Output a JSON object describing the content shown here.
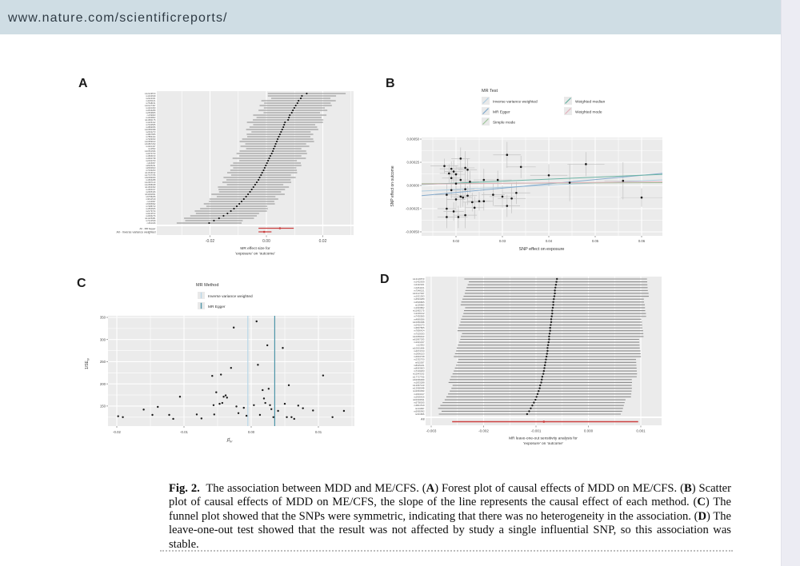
{
  "header": {
    "url": "www.nature.com/scientificreports/"
  },
  "figure": {
    "letters": {
      "a": "A",
      "b": "B",
      "c": "C",
      "d": "D"
    },
    "note": "SNP row labels in panels A and D are illegible at source resolution; rs IDs below are visual approximations."
  },
  "caption": {
    "segments": [
      {
        "t": "Fig. 2.",
        "b": true
      },
      {
        "t": "  The association between MDD and ME/CFS. (",
        "b": false
      },
      {
        "t": "A",
        "b": true
      },
      {
        "t": ") Forest plot of causal effects of MDD on ME/CFS. (",
        "b": false
      },
      {
        "t": "B",
        "b": true
      },
      {
        "t": ") Scatter plot of causal effects of MDD on ME/CFS, the slope of the line represents the causal effect of each method. (",
        "b": false
      },
      {
        "t": "C",
        "b": true
      },
      {
        "t": ") The funnel plot showed that the SNPs were symmetric, indicating that there was no heterogeneity in the association. (",
        "b": false
      },
      {
        "t": "D",
        "b": true
      },
      {
        "t": ") The leave-one-out test showed that the result was not affected by study a single influential SNP, so this association was stable.",
        "b": false
      }
    ]
  },
  "colors": {
    "panel_bg": "#ebebeb",
    "grid": "#ffffff",
    "bar_gray": "#8c8c8c",
    "point_black": "#1a1a1a",
    "summary_red": "#cc4040",
    "axis_text": "#4d4d4d",
    "header_bg": "#cfdde4"
  },
  "chart_data": [
    {
      "id": "A",
      "type": "forest",
      "xlabel_lines": [
        "MR effect size for",
        "'exposure' on 'outcome'"
      ],
      "x_ticks": [
        -0.02,
        0.0,
        0.02
      ],
      "x_tick_labels": [
        "-0.02",
        "0.00",
        "0.02"
      ],
      "xlim": [
        -0.039,
        0.031
      ],
      "snp_labels": [
        "rs12129573",
        "rs1432639",
        "rs2422321",
        "rs4261101",
        "rs7548151",
        "rs10127497",
        "rs1021363",
        "rs4543289",
        "rs2509805",
        "rs159963",
        "rs1933802",
        "rs11682175",
        "rs1226412",
        "rs7430565",
        "rs4869056",
        "rs10950398",
        "rs2402273",
        "rs3807865",
        "rs7856424",
        "rs7029033",
        "rs10959913",
        "rs61867293",
        "rs1021437",
        "rs12552",
        "rs10501696",
        "rs4074723",
        "rs1806153",
        "rs4904738",
        "rs2332700",
        "rs915057",
        "rs8025231",
        "rs8063603",
        "rs7193263",
        "rs11643192",
        "rs17727765",
        "rs62099069",
        "rs1833288",
        "rs12967143",
        "rs12958048",
        "rs11663393",
        "rs1904317",
        "rs2905426",
        "rs61902811",
        "rs5758265",
        "rs9611519",
        "rs134997",
        "rs5995992",
        "rs7288723",
        "rs1554505",
        "rs2179744",
        "rs3213572",
        "rs4936276",
        "rs11225381",
        "rs7122539",
        "rs661046"
      ],
      "estimates": [
        0.0143,
        0.0126,
        0.0122,
        0.0114,
        0.011,
        0.0104,
        0.0099,
        0.0094,
        0.009,
        0.0083,
        0.008,
        0.0077,
        0.0066,
        0.0063,
        0.006,
        0.0056,
        0.0052,
        0.0048,
        0.0044,
        0.004,
        0.0037,
        0.0033,
        0.003,
        0.0026,
        0.0023,
        0.0019,
        0.0014,
        0.001,
        0.0006,
        0.0002,
        -0.0002,
        -0.0006,
        -0.001,
        -0.0015,
        -0.0019,
        -0.0024,
        -0.0028,
        -0.0034,
        -0.004,
        -0.0046,
        -0.0052,
        -0.0058,
        -0.0065,
        -0.0072,
        -0.008,
        -0.0088,
        -0.0096,
        -0.0105,
        -0.0115,
        -0.0126,
        -0.0138,
        -0.0152,
        -0.0168,
        -0.0186,
        -0.0203
      ],
      "ci_half_widths": [
        0.0138,
        0.0121,
        0.0105,
        0.0132,
        0.0118,
        0.0128,
        0.0108,
        0.0122,
        0.01,
        0.013,
        0.0115,
        0.0125,
        0.0135,
        0.011,
        0.012,
        0.0128,
        0.0105,
        0.0118,
        0.0112,
        0.0126,
        0.0132,
        0.0108,
        0.0122,
        0.0098,
        0.0118,
        0.0125,
        0.011,
        0.013,
        0.0102,
        0.012,
        0.0126,
        0.0112,
        0.0118,
        0.0124,
        0.0106,
        0.0128,
        0.0114,
        0.0122,
        0.01,
        0.0126,
        0.0118,
        0.011,
        0.013,
        0.0104,
        0.0122,
        0.0116,
        0.0126,
        0.0108,
        0.012,
        0.0128,
        0.0112,
        0.0118,
        0.0124,
        0.0102,
        0.0115
      ],
      "summary_rows": [
        {
          "label": "All - MR Egger",
          "est": 0.0048,
          "lo": -0.0028,
          "hi": 0.0097
        },
        {
          "label": "All - Inverse variance weighted",
          "est": -0.0008,
          "lo": -0.0028,
          "hi": 0.0018
        }
      ]
    },
    {
      "id": "B",
      "type": "scatter",
      "legend_title": "MR Test",
      "legend": [
        {
          "label": "Inverse variance weighted",
          "color": "#aeccdf"
        },
        {
          "label": "MR Egger",
          "color": "#7fa8cb"
        },
        {
          "label": "Simple mode",
          "color": "#9dc49a"
        },
        {
          "label": "Weighted median",
          "color": "#66b1a1"
        },
        {
          "label": "Weighted mode",
          "color": "#e4b0ba"
        }
      ],
      "xlabel": "SNP effect on exposure",
      "ylabel": "SNP effect on outcome",
      "x_ticks": [
        0.02,
        0.03,
        0.04,
        0.05,
        0.06
      ],
      "x_tick_labels": [
        "0.02",
        "0.03",
        "0.04",
        "0.05",
        "0.06"
      ],
      "y_ticks": [
        0.0005,
        0.00025,
        0.0,
        -0.00025,
        -0.0005
      ],
      "y_tick_labels": [
        "0.00050",
        "0.00025",
        "0.00000",
        "-0.00025",
        "-0.00050"
      ],
      "xlim": [
        0.0126,
        0.0645
      ],
      "ylim": [
        -0.00055,
        0.00055
      ],
      "points": [
        [
          0.0175,
          0.00021,
          0.003,
          8e-05
        ],
        [
          0.018,
          -0.0001,
          0.0025,
          0.00012
        ],
        [
          0.018,
          -0.00025,
          0.002,
          0.0001
        ],
        [
          0.018,
          -0.00034,
          0.002,
          0.00012
        ],
        [
          0.0185,
          0.00013,
          0.002,
          0.0001
        ],
        [
          0.019,
          0.00018,
          0.0025,
          8e-05
        ],
        [
          0.019,
          8e-05,
          0.002,
          0.0001
        ],
        [
          0.019,
          -5e-05,
          0.002,
          9e-05
        ],
        [
          0.0195,
          0.00015,
          0.002,
          0.00012
        ],
        [
          0.0195,
          -0.00028,
          0.0022,
          0.0001
        ],
        [
          0.02,
          0.00012,
          0.002,
          0.0001
        ],
        [
          0.02,
          2e-05,
          0.0025,
          0.00012
        ],
        [
          0.02,
          -0.00015,
          0.002,
          0.00015
        ],
        [
          0.0205,
          -0.00034,
          0.002,
          0.00012
        ],
        [
          0.021,
          0.00029,
          0.002,
          0.00012
        ],
        [
          0.021,
          6e-05,
          0.002,
          0.0001
        ],
        [
          0.021,
          -0.00012,
          0.0022,
          0.00012
        ],
        [
          0.0215,
          -0.00013,
          0.002,
          0.0001
        ],
        [
          0.022,
          0.00019,
          0.002,
          0.00018
        ],
        [
          0.022,
          -4e-05,
          0.002,
          0.0001
        ],
        [
          0.022,
          -0.00032,
          0.0025,
          0.00014
        ],
        [
          0.0225,
          0.00017,
          0.002,
          0.00012
        ],
        [
          0.0225,
          -0.00011,
          0.002,
          0.0001
        ],
        [
          0.023,
          4e-05,
          0.002,
          0.00012
        ],
        [
          0.0235,
          -0.00018,
          0.002,
          0.0001
        ],
        [
          0.024,
          -0.00024,
          0.002,
          0.00012
        ],
        [
          0.025,
          -0.00017,
          0.0025,
          0.0001
        ],
        [
          0.026,
          6e-05,
          0.0022,
          0.00012
        ],
        [
          0.026,
          -0.00017,
          0.002,
          0.0001
        ],
        [
          0.028,
          -0.0001,
          0.0025,
          0.00012
        ],
        [
          0.029,
          6e-05,
          0.003,
          0.0001
        ],
        [
          0.03,
          -0.00012,
          0.0028,
          0.00012
        ],
        [
          0.031,
          0.00033,
          0.003,
          0.00014
        ],
        [
          0.031,
          -0.00022,
          0.0028,
          0.00012
        ],
        [
          0.032,
          -0.00014,
          0.003,
          0.00016
        ],
        [
          0.033,
          -8e-05,
          0.003,
          0.00012
        ],
        [
          0.034,
          0.0002,
          0.0032,
          0.00012
        ],
        [
          0.04,
          0.00011,
          0.004,
          0.00012
        ],
        [
          0.0445,
          3e-05,
          0.0045,
          0.0002
        ],
        [
          0.048,
          0.00023,
          0.004,
          0.00013
        ],
        [
          0.056,
          5e-05,
          0.004,
          0.0002
        ],
        [
          0.06,
          -0.00013,
          0.0045,
          0.0001
        ]
      ],
      "lines": [
        {
          "name": "Inverse variance weighted",
          "color": "#aeccdf",
          "y_at": [
            -6e-05,
            6e-05
          ]
        },
        {
          "name": "MR Egger",
          "color": "#7fa8cb",
          "y_at": [
            -0.00011,
            0.00013
          ]
        },
        {
          "name": "Simple mode",
          "color": "#9dc49a",
          "y_at": [
            2e-05,
            3e-05
          ]
        },
        {
          "name": "Weighted median",
          "color": "#66b1a1",
          "y_at": [
            1e-05,
            0.00012
          ]
        },
        {
          "name": "Weighted mode",
          "color": "#e4b0ba",
          "y_at": [
            1.5e-05,
            4e-05
          ]
        }
      ]
    },
    {
      "id": "C",
      "type": "funnel",
      "legend_title": "MR Method",
      "legend": [
        {
          "label": "Inverse variance weighted",
          "color": "#b9d7e8"
        },
        {
          "label": "MR Egger",
          "color": "#4e95a8"
        }
      ],
      "xlabel_main": "β̂",
      "xlabel_sub": "IV",
      "ylabel_main": "1/SE",
      "ylabel_sub": "IV",
      "x_ticks": [
        -0.02,
        -0.01,
        0.0,
        0.01
      ],
      "x_tick_labels": [
        "-0.02",
        "-0.01",
        "0.00",
        "0.01"
      ],
      "y_ticks": [
        350,
        300,
        250,
        200,
        150
      ],
      "y_tick_labels": [
        "350",
        "300",
        "250",
        "200",
        "150"
      ],
      "xlim": [
        -0.0225,
        0.0155
      ],
      "ylim": [
        105,
        355
      ],
      "vlines": [
        {
          "method": "Inverse variance weighted",
          "x": -0.0005,
          "color": "#b9d7e8"
        },
        {
          "method": "MR Egger",
          "x": 0.0035,
          "color": "#4e95a8"
        }
      ],
      "points": [
        [
          -0.0198,
          127
        ],
        [
          -0.0191,
          125
        ],
        [
          -0.016,
          142
        ],
        [
          -0.0147,
          130
        ],
        [
          -0.0139,
          148
        ],
        [
          -0.0122,
          130
        ],
        [
          -0.0116,
          121
        ],
        [
          -0.0106,
          171
        ],
        [
          -0.0081,
          131
        ],
        [
          -0.0074,
          122
        ],
        [
          -0.0058,
          218
        ],
        [
          -0.0056,
          152
        ],
        [
          -0.0055,
          131
        ],
        [
          -0.0052,
          181
        ],
        [
          -0.0047,
          155
        ],
        [
          -0.0045,
          221
        ],
        [
          -0.0043,
          157
        ],
        [
          -0.0041,
          171
        ],
        [
          -0.0038,
          174
        ],
        [
          -0.0036,
          169
        ],
        [
          -0.003,
          236
        ],
        [
          -0.0026,
          327
        ],
        [
          -0.0022,
          149
        ],
        [
          -0.0019,
          134
        ],
        [
          -0.0011,
          146
        ],
        [
          -0.0007,
          128
        ],
        [
          0.0004,
          152
        ],
        [
          0.0008,
          341
        ],
        [
          0.001,
          243
        ],
        [
          0.0013,
          130
        ],
        [
          0.0017,
          186
        ],
        [
          0.0019,
          167
        ],
        [
          0.0021,
          157
        ],
        [
          0.0024,
          287
        ],
        [
          0.0026,
          189
        ],
        [
          0.0028,
          152
        ],
        [
          0.003,
          143
        ],
        [
          0.0033,
          125
        ],
        [
          0.004,
          139
        ],
        [
          0.0047,
          281
        ],
        [
          0.005,
          155
        ],
        [
          0.0053,
          125
        ],
        [
          0.0056,
          197
        ],
        [
          0.006,
          125
        ],
        [
          0.0064,
          121
        ],
        [
          0.007,
          151
        ],
        [
          0.0077,
          145
        ],
        [
          0.0092,
          140
        ],
        [
          0.0107,
          219
        ],
        [
          0.0121,
          125
        ],
        [
          0.0138,
          139
        ]
      ]
    },
    {
      "id": "D",
      "type": "forest",
      "xlabel_lines": [
        "MR leave-one-out sensitivity analysis for",
        "'exposure' on 'outcome'"
      ],
      "x_ticks": [
        -0.003,
        -0.002,
        -0.001,
        0.0,
        0.001
      ],
      "x_tick_labels": [
        "-0.003",
        "-0.002",
        "-0.001",
        "0.000",
        "0.001"
      ],
      "xlim": [
        -0.0031,
        0.0014
      ],
      "snp_labels": [
        "rs12129573",
        "rs1432639",
        "rs2422321",
        "rs4261101",
        "rs7548151",
        "rs10127497",
        "rs1021363",
        "rs4543289",
        "rs2509805",
        "rs159963",
        "rs1933802",
        "rs11682175",
        "rs1226412",
        "rs7430565",
        "rs4869056",
        "rs10950398",
        "rs2402273",
        "rs3807865",
        "rs7856424",
        "rs7029033",
        "rs10959913",
        "rs61867293",
        "rs1021437",
        "rs12552",
        "rs10501696",
        "rs4074723",
        "rs1806153",
        "rs4904738",
        "rs2332700",
        "rs915057",
        "rs8025231",
        "rs8063603",
        "rs7193263",
        "rs11643192",
        "rs17727765",
        "rs62099069",
        "rs1833288",
        "rs12967143",
        "rs12958048",
        "rs11663393",
        "rs1904317",
        "rs2905426",
        "rs61902811",
        "rs5758265",
        "rs9611519",
        "rs134997",
        "rs5995992",
        "rs301806"
      ],
      "estimates": [
        -0.0006,
        -0.00061,
        -0.00062,
        -0.00063,
        -0.00064,
        -0.00064,
        -0.00065,
        -0.00066,
        -0.00067,
        -0.00067,
        -0.00068,
        -0.00069,
        -0.00069,
        -0.0007,
        -0.00071,
        -0.00071,
        -0.00072,
        -0.00073,
        -0.00073,
        -0.00074,
        -0.00075,
        -0.00075,
        -0.00076,
        -0.00077,
        -0.00078,
        -0.00078,
        -0.00079,
        -0.0008,
        -0.00081,
        -0.00082,
        -0.00083,
        -0.00084,
        -0.00085,
        -0.00086,
        -0.00088,
        -0.00089,
        -0.0009,
        -0.00092,
        -0.00093,
        -0.00095,
        -0.00097,
        -0.00099,
        -0.00101,
        -0.00104,
        -0.00107,
        -0.0011,
        -0.00113,
        -0.00117
      ],
      "ci_lo_offset": -0.00172,
      "ci_hi_offset": 0.00176,
      "summary_rows": [
        {
          "label": "All",
          "est": -0.00085,
          "lo": -0.0026,
          "hi": 0.00095
        }
      ]
    }
  ]
}
